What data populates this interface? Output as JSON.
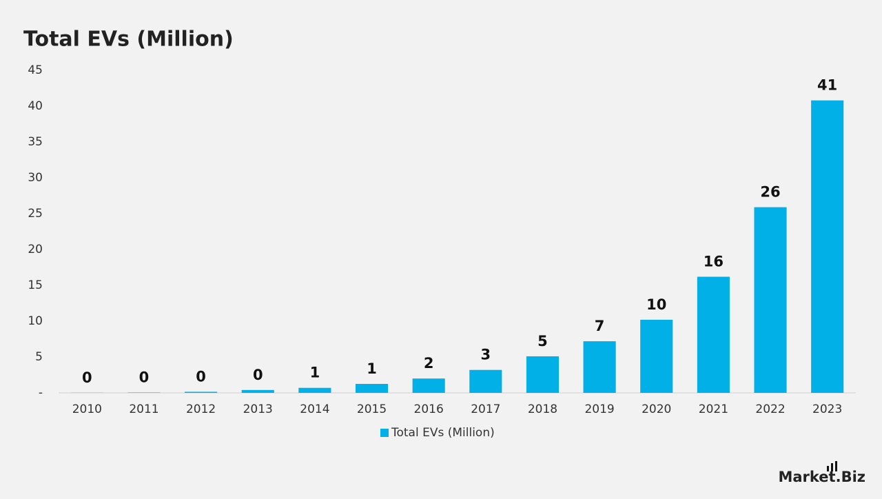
{
  "chart_data": {
    "type": "bar",
    "title": "Total EVs (Million)",
    "categories": [
      "2010",
      "2011",
      "2012",
      "2013",
      "2014",
      "2015",
      "2016",
      "2017",
      "2018",
      "2019",
      "2020",
      "2021",
      "2022",
      "2023"
    ],
    "series": [
      {
        "name": "Total EVs (Million)",
        "color": "#00b0e6",
        "values": [
          0.02,
          0.05,
          0.15,
          0.4,
          0.7,
          1.25,
          2.0,
          3.2,
          5.1,
          7.2,
          10.2,
          16.2,
          25.9,
          40.8
        ],
        "value_labels": [
          "0",
          "0",
          "0",
          "0",
          "1",
          "1",
          "2",
          "3",
          "5",
          "7",
          "10",
          "16",
          "26",
          "41"
        ]
      }
    ],
    "ylim": [
      0,
      45
    ],
    "yticks": [
      {
        "value": 0,
        "label": "-"
      },
      5,
      10,
      15,
      20,
      25,
      30,
      35,
      40,
      45
    ],
    "grid": false,
    "legend": "bottom"
  },
  "logo": "Market.Biz"
}
